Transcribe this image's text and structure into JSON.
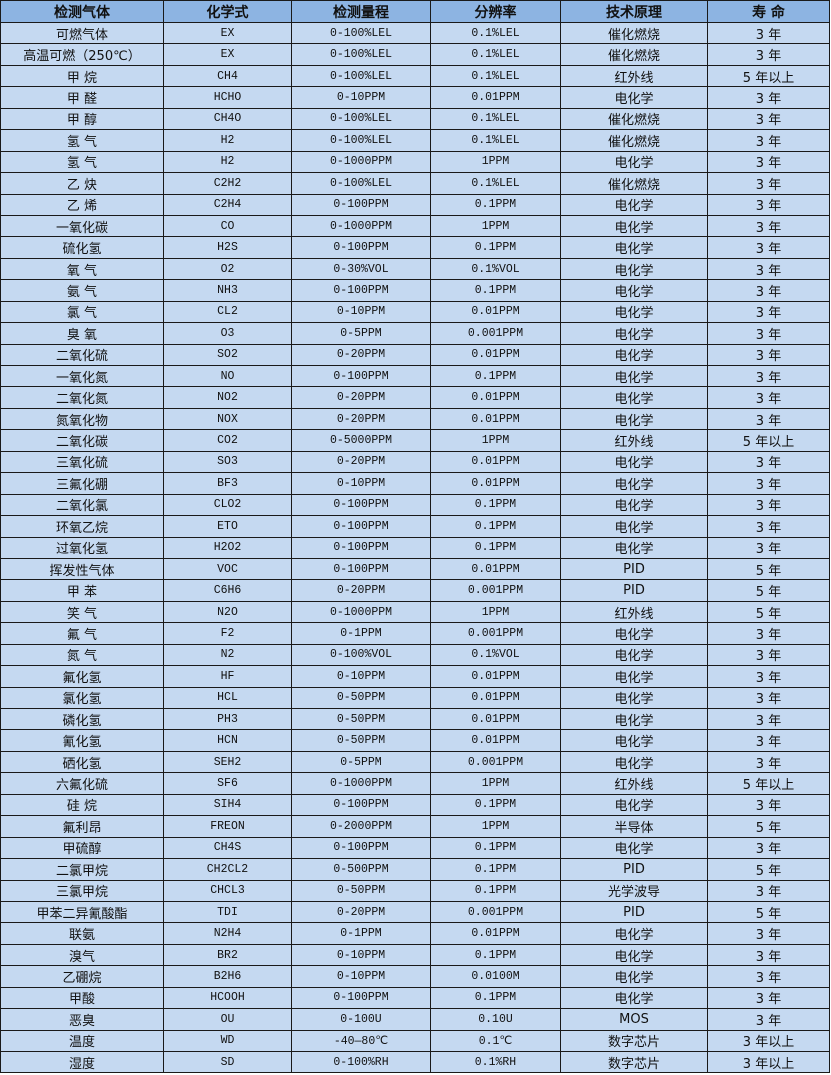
{
  "colors": {
    "header_bg": "#8db4e2",
    "row_bg": "#c5d9f1",
    "border": "#1a1a1a"
  },
  "headers": [
    "检测气体",
    "化学式",
    "检测量程",
    "分辨率",
    "技术原理",
    "寿 命"
  ],
  "rows": [
    [
      "可燃气体",
      "EX",
      "0-100%LEL",
      "0.1%LEL",
      "催化燃烧",
      "3 年"
    ],
    [
      "高温可燃（250℃）",
      "EX",
      "0-100%LEL",
      "0.1%LEL",
      "催化燃烧",
      "3 年"
    ],
    [
      "甲 烷",
      "CH4",
      "0-100%LEL",
      "0.1%LEL",
      "红外线",
      "5 年以上"
    ],
    [
      "甲 醛",
      "HCHO",
      "0-10PPM",
      "0.01PPM",
      "电化学",
      "3 年"
    ],
    [
      "甲 醇",
      "CH4O",
      "0-100%LEL",
      "0.1%LEL",
      "催化燃烧",
      "3 年"
    ],
    [
      "氢 气",
      "H2",
      "0-100%LEL",
      "0.1%LEL",
      "催化燃烧",
      "3 年"
    ],
    [
      "氢 气",
      "H2",
      "0-1000PPM",
      "1PPM",
      "电化学",
      "3 年"
    ],
    [
      "乙 炔",
      "C2H2",
      "0-100%LEL",
      "0.1%LEL",
      "催化燃烧",
      "3 年"
    ],
    [
      "乙 烯",
      "C2H4",
      "0-100PPM",
      "0.1PPM",
      "电化学",
      "3 年"
    ],
    [
      "一氧化碳",
      "CO",
      "0-1000PPM",
      "1PPM",
      "电化学",
      "3 年"
    ],
    [
      "硫化氢",
      "H2S",
      "0-100PPM",
      "0.1PPM",
      "电化学",
      "3 年"
    ],
    [
      "氧 气",
      "O2",
      "0-30%VOL",
      "0.1%VOL",
      "电化学",
      "3 年"
    ],
    [
      "氨 气",
      "NH3",
      "0-100PPM",
      "0.1PPM",
      "电化学",
      "3 年"
    ],
    [
      "氯 气",
      "CL2",
      "0-10PPM",
      "0.01PPM",
      "电化学",
      "3 年"
    ],
    [
      "臭 氧",
      "O3",
      "0-5PPM",
      "0.001PPM",
      "电化学",
      "3 年"
    ],
    [
      "二氧化硫",
      "SO2",
      "0-20PPM",
      "0.01PPM",
      "电化学",
      "3 年"
    ],
    [
      "一氧化氮",
      "NO",
      "0-100PPM",
      "0.1PPM",
      "电化学",
      "3 年"
    ],
    [
      "二氧化氮",
      "NO2",
      "0-20PPM",
      "0.01PPM",
      "电化学",
      "3 年"
    ],
    [
      "氮氧化物",
      "NOX",
      "0-20PPM",
      "0.01PPM",
      "电化学",
      "3 年"
    ],
    [
      "二氧化碳",
      "CO2",
      "0-5000PPM",
      "1PPM",
      "红外线",
      "5 年以上"
    ],
    [
      "三氧化硫",
      "SO3",
      "0-20PPM",
      "0.01PPM",
      "电化学",
      "3 年"
    ],
    [
      "三氟化硼",
      "BF3",
      "0-10PPM",
      "0.01PPM",
      "电化学",
      "3 年"
    ],
    [
      "二氧化氯",
      "CLO2",
      "0-100PPM",
      "0.1PPM",
      "电化学",
      "3 年"
    ],
    [
      "环氧乙烷",
      "ETO",
      "0-100PPM",
      "0.1PPM",
      "电化学",
      "3 年"
    ],
    [
      "过氧化氢",
      "H2O2",
      "0-100PPM",
      "0.1PPM",
      "电化学",
      "3 年"
    ],
    [
      "挥发性气体",
      "VOC",
      "0-100PPM",
      "0.01PPM",
      "PID",
      "5 年"
    ],
    [
      "甲 苯",
      "C6H6",
      "0-20PPM",
      "0.001PPM",
      "PID",
      "5 年"
    ],
    [
      "笑 气",
      "N2O",
      "0-1000PPM",
      "1PPM",
      "红外线",
      "5 年"
    ],
    [
      "氟 气",
      "F2",
      "0-1PPM",
      "0.001PPM",
      "电化学",
      "3 年"
    ],
    [
      "氮 气",
      "N2",
      "0-100%VOL",
      "0.1%VOL",
      "电化学",
      "3 年"
    ],
    [
      "氟化氢",
      "HF",
      "0-10PPM",
      "0.01PPM",
      "电化学",
      "3 年"
    ],
    [
      "氯化氢",
      "HCL",
      "0-50PPM",
      "0.01PPM",
      "电化学",
      "3 年"
    ],
    [
      "磷化氢",
      "PH3",
      "0-50PPM",
      "0.01PPM",
      "电化学",
      "3 年"
    ],
    [
      "氰化氢",
      "HCN",
      "0-50PPM",
      "0.01PPM",
      "电化学",
      "3 年"
    ],
    [
      "硒化氢",
      "SEH2",
      "0-5PPM",
      "0.001PPM",
      "电化学",
      "3 年"
    ],
    [
      "六氟化硫",
      "SF6",
      "0-1000PPM",
      "1PPM",
      "红外线",
      "5 年以上"
    ],
    [
      "硅 烷",
      "SIH4",
      "0-100PPM",
      "0.1PPM",
      "电化学",
      "3 年"
    ],
    [
      "氟利昂",
      "FREON",
      "0-2000PPM",
      "1PPM",
      "半导体",
      "5 年"
    ],
    [
      "甲硫醇",
      "CH4S",
      "0-100PPM",
      "0.1PPM",
      "电化学",
      "3 年"
    ],
    [
      "二氯甲烷",
      "CH2CL2",
      "0-500PPM",
      "0.1PPM",
      "PID",
      "5 年"
    ],
    [
      "三氯甲烷",
      "CHCL3",
      "0-50PPM",
      "0.1PPM",
      "光学波导",
      "3 年"
    ],
    [
      "甲苯二异氰酸酯",
      "TDI",
      "0-20PPM",
      "0.001PPM",
      "PID",
      "5 年"
    ],
    [
      "联氨",
      "N2H4",
      "0-1PPM",
      "0.01PPM",
      "电化学",
      "3 年"
    ],
    [
      "溴气",
      "BR2",
      "0-10PPM",
      "0.1PPM",
      "电化学",
      "3 年"
    ],
    [
      "乙硼烷",
      "B2H6",
      "0-10PPM",
      "0.0100M",
      "电化学",
      "3 年"
    ],
    [
      "甲酸",
      "HCOOH",
      "0-100PPM",
      "0.1PPM",
      "电化学",
      "3 年"
    ],
    [
      "恶臭",
      "OU",
      "0-100U",
      "0.10U",
      "MOS",
      "3 年"
    ],
    [
      "温度",
      "WD",
      "-40—80℃",
      "0.1℃",
      "数字芯片",
      "3 年以上"
    ],
    [
      "湿度",
      "SD",
      "0-100%RH",
      "0.1%RH",
      "数字芯片",
      "3 年以上"
    ]
  ]
}
